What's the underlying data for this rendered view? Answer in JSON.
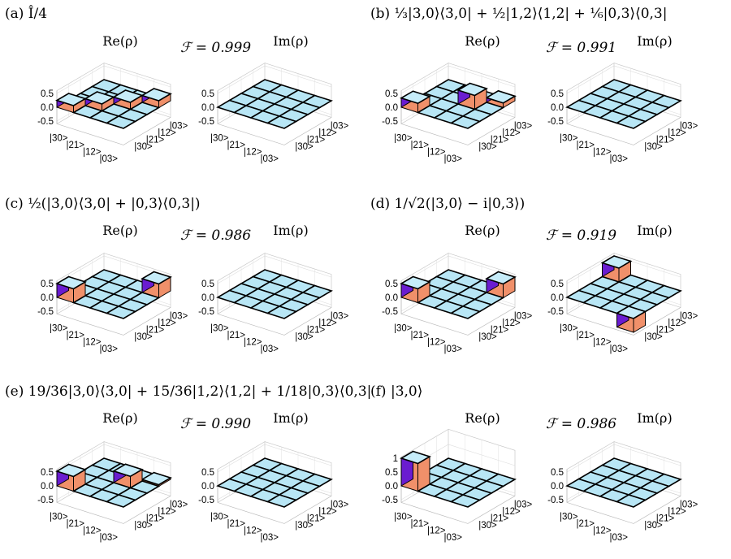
{
  "basis": [
    "|30>",
    "|21>",
    "|12>",
    "|03>"
  ],
  "z_ticks": [
    "0.5",
    "0.0",
    "-0.5"
  ],
  "z_ticks_f": [
    "1",
    "0.5",
    "0.0",
    "-0.5"
  ],
  "re_label": "Re(ρ)",
  "im_label": "Im(ρ)",
  "colors": {
    "face": "#b8e6f5",
    "top": "#c6ecf9",
    "side_front": "#f0906a",
    "side_left": "#6a1cd0"
  },
  "panels": [
    {
      "id": "a",
      "label": "(a)",
      "state": "Î/4",
      "fidelity": "ℱ = 0.999",
      "re_diag": [
        0.25,
        0.25,
        0.25,
        0.25
      ],
      "im": []
    },
    {
      "id": "b",
      "label": "(b)",
      "state": "⅓|3,0⟩⟨3,0| + ½|1,2⟩⟨1,2| + ⅙|0,3⟩⟨0,3|",
      "fidelity": "ℱ = 0.991",
      "re_diag": [
        0.333,
        0,
        0.5,
        0.167
      ],
      "im": []
    },
    {
      "id": "c",
      "label": "(c)",
      "state": "½(|3,0⟩⟨3,0| + |0,3⟩⟨0,3|)",
      "fidelity": "ℱ = 0.986",
      "re_diag": [
        0.5,
        0,
        0,
        0.5
      ],
      "im": []
    },
    {
      "id": "d",
      "label": "(d)",
      "state": "1/√2(|3,0⟩ − i|0,3⟩)",
      "fidelity": "ℱ = 0.919",
      "re_diag": [
        0.5,
        0,
        0,
        0.5
      ],
      "im": [
        {
          "r": 0,
          "c": 3,
          "v": 0.5
        },
        {
          "r": 3,
          "c": 0,
          "v": -0.5
        }
      ]
    },
    {
      "id": "e",
      "label": "(e)",
      "state": "19/36|3,0⟩⟨3,0| + 15/36|1,2⟩⟨1,2| + 1/18|0,3⟩⟨0,3|",
      "fidelity": "ℱ = 0.990",
      "re_diag": [
        0.528,
        0,
        0.417,
        0.056
      ],
      "im": []
    },
    {
      "id": "f",
      "label": "(f)",
      "state": "|3,0⟩",
      "fidelity": "ℱ = 0.986",
      "re_diag": [
        1.0,
        0,
        0,
        0
      ],
      "im": []
    }
  ]
}
